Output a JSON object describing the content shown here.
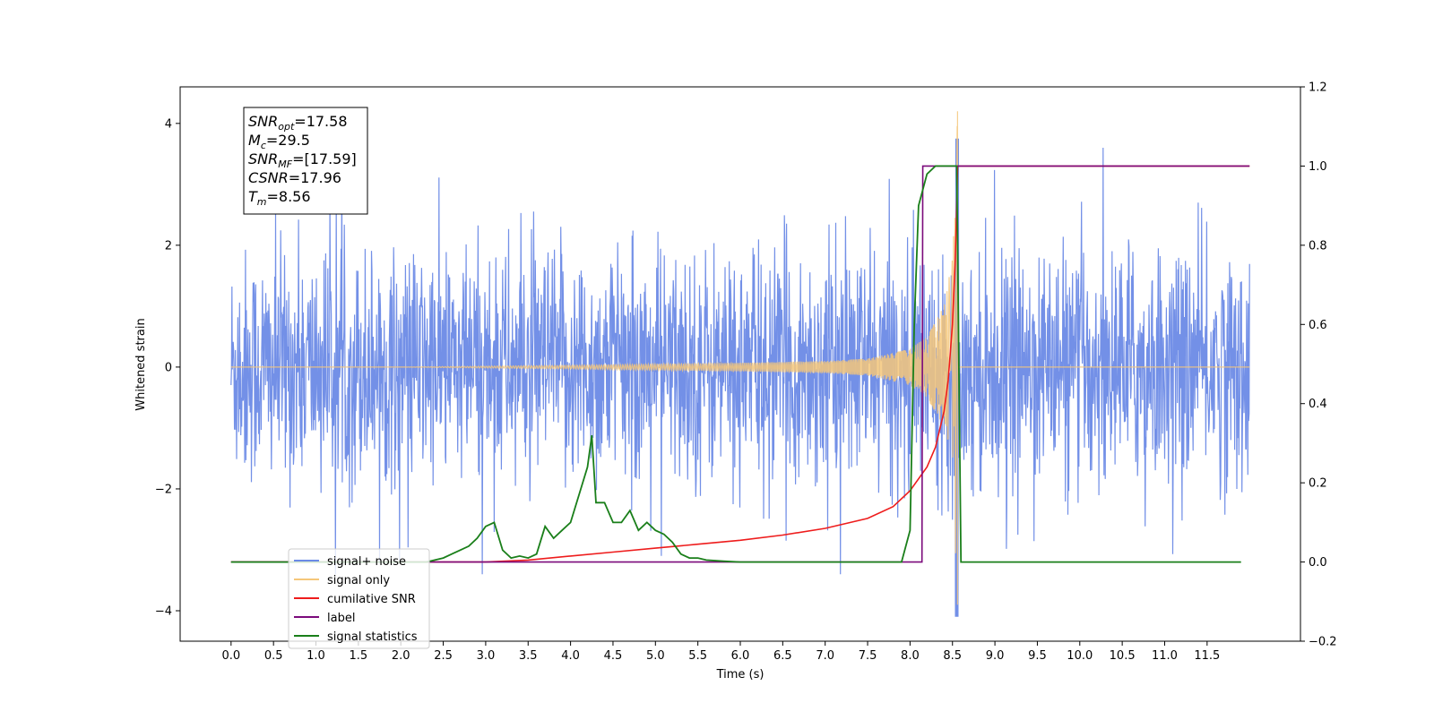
{
  "chart_data": {
    "type": "line",
    "xlabel": "Time (s)",
    "ylabel_left": "Whitened strain",
    "ylabel_right": "",
    "xlim": [
      -0.6,
      12.6
    ],
    "ylim_left": [
      -4.5,
      4.6
    ],
    "ylim_right": [
      -0.2,
      1.2
    ],
    "x_ticks": [
      0.0,
      0.5,
      1.0,
      1.5,
      2.0,
      2.5,
      3.0,
      3.5,
      4.0,
      4.5,
      5.0,
      5.5,
      6.0,
      6.5,
      7.0,
      7.5,
      8.0,
      8.5,
      9.0,
      9.5,
      10.0,
      10.5,
      11.0,
      11.5
    ],
    "x_tick_labels": [
      "0.0",
      "0.5",
      "1.0",
      "1.5",
      "2.0",
      "2.5",
      "3.0",
      "3.5",
      "4.0",
      "4.5",
      "5.0",
      "5.5",
      "6.0",
      "6.5",
      "7.0",
      "7.5",
      "8.0",
      "8.5",
      "9.0",
      "9.5",
      "10.0",
      "10.5",
      "11.0",
      "11.5"
    ],
    "y_left_ticks": [
      -4,
      -2,
      0,
      2,
      4
    ],
    "y_left_tick_labels": [
      "−4",
      "−2",
      "0",
      "2",
      "4"
    ],
    "y_right_ticks": [
      -0.2,
      0.0,
      0.2,
      0.4,
      0.6,
      0.8,
      1.0,
      1.2
    ],
    "y_right_tick_labels": [
      "−0.2",
      "0.0",
      "0.2",
      "0.4",
      "0.6",
      "0.8",
      "1.0",
      "1.2"
    ],
    "grid": false,
    "legend_position": "lower-left",
    "series": [
      {
        "name": "signal+ noise",
        "axis": "left",
        "color": "#6b8ae6",
        "description_of_values": "white noise band between about -2 and 2 with spikes up to about ±3.6 over 0 to 12 s; min about -4.1 near 8.55 s",
        "x_range": [
          0.0,
          12.0
        ],
        "typical_amplitude": 1.9,
        "max_peak": 3.75,
        "min_value": -4.1
      },
      {
        "name": "signal only",
        "axis": "left",
        "color": "#f5c77a",
        "description_of_values": "chirp oscillation, near 0 until ~4 s, growing toward merger at 8.56 s with peak about 4.2, then ~0",
        "x": [
          0.0,
          2.0,
          4.0,
          5.0,
          6.0,
          7.0,
          7.5,
          8.0,
          8.2,
          8.4,
          8.5,
          8.56,
          8.6,
          12.0
        ],
        "amplitude": [
          0.0,
          0.0,
          0.03,
          0.05,
          0.07,
          0.1,
          0.14,
          0.3,
          0.5,
          1.0,
          1.8,
          4.2,
          0.0,
          0.0
        ]
      },
      {
        "name": "cumilative SNR",
        "axis": "right",
        "color": "#ee1c1c",
        "x": [
          0.0,
          2.5,
          3.0,
          3.5,
          4.0,
          4.5,
          5.0,
          5.5,
          6.0,
          6.5,
          7.0,
          7.5,
          7.8,
          8.0,
          8.2,
          8.3,
          8.4,
          8.45,
          8.5,
          8.53,
          8.55,
          8.56,
          12.0
        ],
        "values": [
          0.0,
          0.0,
          0.0,
          0.005,
          0.015,
          0.025,
          0.035,
          0.045,
          0.055,
          0.068,
          0.085,
          0.11,
          0.14,
          0.18,
          0.24,
          0.29,
          0.38,
          0.46,
          0.6,
          0.75,
          0.9,
          1.0,
          1.0
        ]
      },
      {
        "name": "label",
        "axis": "right",
        "color": "#7b0a7b",
        "x": [
          0.0,
          8.14,
          8.15,
          8.55,
          8.56,
          12.0
        ],
        "values": [
          0.0,
          0.0,
          1.0,
          1.0,
          1.0,
          1.0
        ]
      },
      {
        "name": "signal statistics",
        "axis": "right",
        "color": "#1a7f1a",
        "x": [
          0.0,
          2.3,
          2.5,
          2.6,
          2.7,
          2.8,
          2.9,
          3.0,
          3.1,
          3.2,
          3.3,
          3.4,
          3.5,
          3.6,
          3.7,
          3.8,
          3.9,
          4.0,
          4.1,
          4.2,
          4.25,
          4.3,
          4.4,
          4.5,
          4.6,
          4.7,
          4.8,
          4.9,
          5.0,
          5.1,
          5.2,
          5.3,
          5.4,
          5.5,
          5.6,
          5.8,
          6.0,
          6.5,
          7.0,
          7.5,
          7.9,
          8.0,
          8.05,
          8.1,
          8.2,
          8.3,
          8.4,
          8.5,
          8.55,
          8.6,
          8.7,
          11.9
        ],
        "values": [
          0.0,
          0.0,
          0.01,
          0.02,
          0.03,
          0.04,
          0.06,
          0.09,
          0.1,
          0.03,
          0.01,
          0.015,
          0.01,
          0.02,
          0.09,
          0.06,
          0.08,
          0.1,
          0.17,
          0.24,
          0.32,
          0.15,
          0.15,
          0.1,
          0.1,
          0.13,
          0.08,
          0.1,
          0.08,
          0.07,
          0.05,
          0.02,
          0.01,
          0.01,
          0.005,
          0.002,
          0.0,
          0.0,
          0.0,
          0.0,
          0.0,
          0.08,
          0.6,
          0.9,
          0.98,
          1.0,
          1.0,
          1.0,
          1.0,
          0.0,
          0.0,
          0.0
        ]
      }
    ],
    "legend": [
      {
        "label": "signal+ noise",
        "color": "#6b8ae6"
      },
      {
        "label": "signal only",
        "color": "#f5c77a"
      },
      {
        "label": "cumilative SNR",
        "color": "#ee1c1c"
      },
      {
        "label": "label",
        "color": "#7b0a7b"
      },
      {
        "label": "signal statistics",
        "color": "#1a7f1a"
      }
    ],
    "info_box": [
      {
        "base": "SNR",
        "sub": "opt",
        "value": "=17.58"
      },
      {
        "base": "M",
        "sub": "c",
        "value": "=29.5"
      },
      {
        "base": "SNR",
        "sub": "MF",
        "value": "=[17.59]"
      },
      {
        "base": "CSNR",
        "sub": "",
        "value": "=17.96"
      },
      {
        "base": "T",
        "sub": "m",
        "value": "=8.56"
      }
    ]
  }
}
